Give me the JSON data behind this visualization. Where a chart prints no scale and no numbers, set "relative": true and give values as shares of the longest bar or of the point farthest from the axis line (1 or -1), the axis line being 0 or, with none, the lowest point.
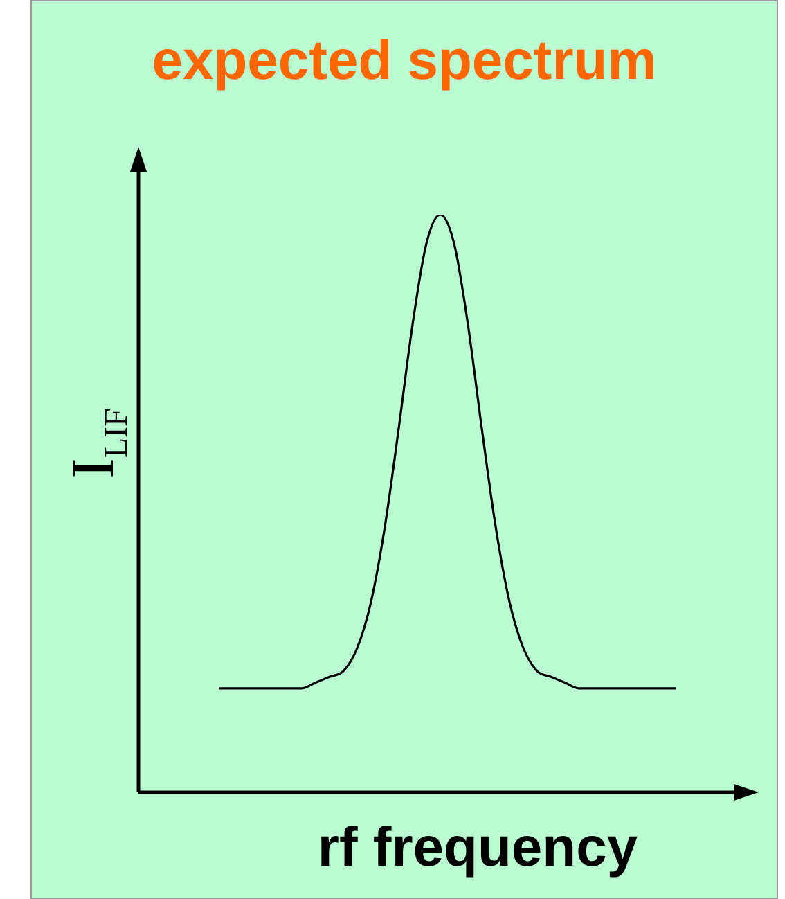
{
  "chart_data": {
    "type": "line",
    "title": "expected spectrum",
    "xlabel": "rf frequency",
    "ylabel": "I$_{LIF}$",
    "relative": true,
    "marker": "none",
    "line_style": "solid",
    "categories": [
      null,
      null,
      null,
      null,
      null,
      null,
      null,
      null,
      null,
      null,
      null,
      null,
      null,
      null,
      null,
      null,
      null,
      null,
      null,
      null,
      null,
      null,
      null,
      null,
      null,
      null,
      null,
      null,
      null,
      null,
      null,
      null,
      null,
      null
    ],
    "series": [
      {
        "color": "#000000",
        "values": [
          0.18,
          0.18,
          0.18,
          0.18,
          0.18,
          0.18,
          0.18,
          0.19,
          0.2,
          0.21,
          0.25,
          0.33,
          0.46,
          0.63,
          0.81,
          0.95,
          1.0,
          0.95,
          0.81,
          0.63,
          0.46,
          0.33,
          0.25,
          0.21,
          0.2,
          0.19,
          0.18,
          0.18,
          0.18,
          0.18,
          0.18,
          0.18,
          0.18,
          0.18
        ]
      }
    ]
  }
}
